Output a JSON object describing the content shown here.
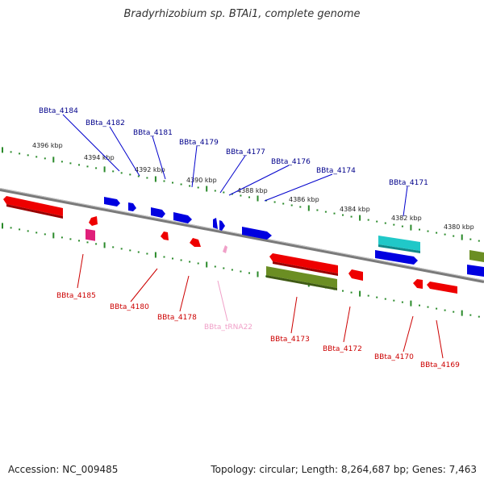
{
  "title": "Bradyrhizobium sp. BTAi1, complete genome",
  "footer": {
    "accession": "Accession: NC_009485",
    "summary": "Topology: circular; Length: 8,264,687 bp; Genes: 7,463"
  },
  "colors": {
    "backbone": "#7a7a7a",
    "tick": "#2a8a2a",
    "top_label": "#00008b",
    "bottom_label": "#cc0000",
    "trna_label": "#f0a0c8",
    "blue_gene": "#0000e0",
    "red_gene": "#ee0000",
    "olive_gene": "#6b8e23",
    "cyan_gene": "#20c8c8",
    "magenta_gene": "#e0207a"
  },
  "kbp_labels": [
    "4396 kbp",
    "4394 kbp",
    "4392 kbp",
    "4390 kbp",
    "4388 kbp",
    "4386 kbp",
    "4384 kbp",
    "4382 kbp",
    "4380 kbp"
  ],
  "top_genes": [
    "BBta_4184",
    "BBta_4182",
    "BBta_4181",
    "BBta_4179",
    "BBta_4177",
    "BBta_4176",
    "BBta_4174",
    "BBta_4171"
  ],
  "bottom_genes": [
    "BBta_4185",
    "BBta_4180",
    "BBta_4178",
    "BBta_tRNA22",
    "BBta_4173",
    "BBta_4172",
    "BBta_4170",
    "BBta_4169"
  ]
}
